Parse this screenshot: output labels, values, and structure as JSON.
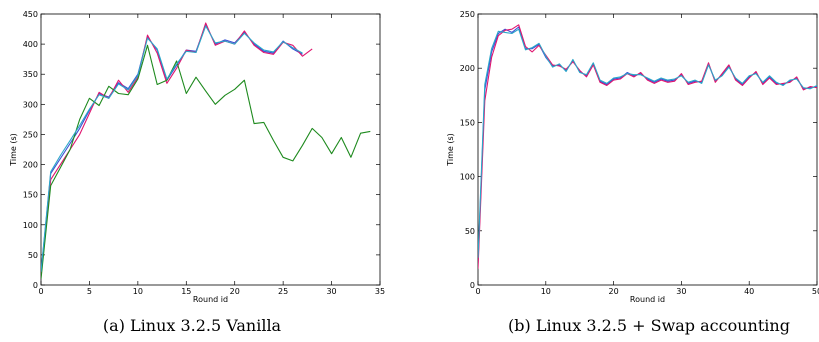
{
  "chart_data": [
    {
      "type": "line",
      "caption": "(a) Linux 3.2.5 Vanilla",
      "xlabel": "Round id",
      "ylabel": "Time (s)",
      "xlim": [
        0,
        35
      ],
      "ylim": [
        0,
        450
      ],
      "xticks": [
        0,
        5,
        10,
        15,
        20,
        25,
        30,
        35
      ],
      "yticks": [
        0,
        50,
        100,
        150,
        200,
        250,
        300,
        350,
        400,
        450
      ],
      "grid": false,
      "colors": [
        "#3a4fd6",
        "#e0156f",
        "#1e8a1e",
        "#2aa6c8"
      ],
      "series": [
        {
          "color": "#3a4fd6",
          "x": [
            0,
            1,
            2,
            3,
            4,
            5,
            6,
            7,
            8,
            9,
            10,
            11,
            12,
            13,
            14,
            15,
            16,
            17,
            18,
            19,
            20,
            21,
            22,
            23,
            24,
            25,
            26,
            27
          ],
          "values": [
            20,
            185,
            210,
            235,
            260,
            290,
            318,
            312,
            336,
            326,
            350,
            412,
            390,
            340,
            365,
            390,
            388,
            432,
            400,
            407,
            402,
            420,
            400,
            388,
            385,
            405,
            392,
            383
          ]
        },
        {
          "color": "#e0156f",
          "x": [
            0,
            1,
            2,
            3,
            4,
            5,
            6,
            7,
            8,
            9,
            10,
            11,
            12,
            13,
            14,
            15,
            16,
            17,
            18,
            19,
            20,
            21,
            22,
            23,
            24,
            25,
            26,
            27,
            28
          ],
          "values": [
            15,
            175,
            200,
            225,
            250,
            285,
            320,
            310,
            340,
            320,
            345,
            415,
            385,
            335,
            360,
            390,
            386,
            435,
            398,
            405,
            400,
            422,
            398,
            386,
            383,
            403,
            398,
            380,
            392
          ]
        },
        {
          "color": "#1e8a1e",
          "x": [
            0,
            1,
            2,
            3,
            4,
            5,
            6,
            7,
            8,
            9,
            10,
            11,
            12,
            13,
            14,
            15,
            16,
            17,
            18,
            19,
            20,
            21,
            22,
            23,
            24,
            25,
            26,
            27,
            28,
            29,
            30,
            31,
            32,
            33,
            34,
            35
          ],
          "values": [
            10,
            165,
            195,
            225,
            275,
            310,
            298,
            330,
            318,
            316,
            342,
            398,
            333,
            340,
            372,
            318,
            345,
            322,
            300,
            315,
            325,
            340,
            268,
            270,
            240,
            212,
            206,
            232,
            260,
            245,
            218,
            245,
            212,
            252,
            255,
            null
          ]
        },
        {
          "color": "#2aa6c8",
          "x": [
            0,
            1,
            2,
            3,
            4,
            5,
            6,
            7,
            8,
            9,
            10,
            11,
            12,
            13,
            14,
            15,
            16,
            17,
            18,
            19,
            20,
            21,
            22,
            23,
            24,
            25,
            26,
            27
          ],
          "values": [
            22,
            188,
            215,
            240,
            265,
            292,
            316,
            310,
            334,
            324,
            348,
            410,
            392,
            342,
            367,
            388,
            386,
            430,
            402,
            405,
            400,
            418,
            402,
            390,
            387,
            404,
            394,
            385
          ]
        }
      ]
    },
    {
      "type": "line",
      "caption": "(b) Linux 3.2.5 + Swap accounting",
      "xlabel": "Round id",
      "ylabel": "Time (s)",
      "xlim": [
        0,
        50
      ],
      "ylim": [
        0,
        250
      ],
      "xticks": [
        0,
        10,
        20,
        30,
        40,
        50
      ],
      "yticks": [
        0,
        50,
        100,
        150,
        200,
        250
      ],
      "grid": false,
      "colors": [
        "#3a4fd6",
        "#e0156f",
        "#2aa6c8"
      ],
      "series": [
        {
          "color": "#3a4fd6",
          "x": [
            0,
            1,
            2,
            3,
            4,
            5,
            6,
            7,
            8,
            9,
            10,
            11,
            12,
            13,
            14,
            15,
            16,
            17,
            18,
            19,
            20,
            21,
            22,
            23,
            24,
            25,
            26,
            27,
            28,
            29,
            30,
            31,
            32,
            33,
            34,
            35,
            36,
            37,
            38,
            39,
            40,
            41,
            42,
            43,
            44,
            45,
            46,
            47,
            48,
            49,
            50
          ],
          "values": [
            20,
            180,
            215,
            232,
            236,
            233,
            238,
            218,
            218,
            222,
            210,
            202,
            203,
            198,
            207,
            197,
            193,
            204,
            188,
            185,
            190,
            191,
            196,
            193,
            195,
            190,
            187,
            190,
            188,
            189,
            194,
            186,
            188,
            187,
            204,
            188,
            194,
            202,
            190,
            185,
            192,
            196,
            186,
            192,
            186,
            185,
            188,
            191,
            181,
            182,
            183
          ]
        },
        {
          "color": "#e0156f",
          "x": [
            0,
            1,
            2,
            3,
            4,
            5,
            6,
            7,
            8,
            9,
            10,
            11,
            12,
            13,
            14,
            15,
            16,
            17,
            18,
            19,
            20,
            21,
            22,
            23,
            24,
            25,
            26,
            27,
            28,
            29,
            30,
            31,
            32,
            33,
            34,
            35,
            36,
            37,
            38,
            39,
            40,
            41,
            42,
            43,
            44,
            45,
            46,
            47,
            48,
            49,
            50
          ],
          "values": [
            15,
            170,
            210,
            230,
            235,
            236,
            240,
            220,
            215,
            221,
            212,
            203,
            202,
            199,
            206,
            198,
            192,
            203,
            187,
            184,
            189,
            190,
            195,
            192,
            196,
            189,
            186,
            189,
            187,
            188,
            195,
            185,
            187,
            188,
            205,
            187,
            195,
            203,
            189,
            184,
            191,
            197,
            185,
            191,
            185,
            186,
            187,
            192,
            180,
            183,
            182
          ]
        },
        {
          "color": "#2aa6c8",
          "x": [
            0,
            1,
            2,
            3,
            4,
            5,
            6,
            7,
            8,
            9,
            10,
            11,
            12,
            13,
            14,
            15,
            16,
            17,
            18,
            19,
            20,
            21,
            22,
            23,
            24,
            25,
            26,
            27,
            28,
            29,
            30,
            31,
            32,
            33,
            34,
            35,
            36,
            37,
            38,
            39,
            40,
            41,
            42,
            43,
            44,
            45,
            46,
            47,
            48,
            49,
            50
          ],
          "values": [
            25,
            185,
            218,
            234,
            233,
            232,
            236,
            217,
            219,
            223,
            211,
            201,
            204,
            197,
            208,
            196,
            194,
            205,
            189,
            186,
            191,
            192,
            195,
            194,
            194,
            191,
            188,
            191,
            189,
            190,
            193,
            187,
            189,
            186,
            203,
            189,
            193,
            201,
            191,
            186,
            193,
            195,
            187,
            193,
            187,
            184,
            189,
            190,
            182,
            181,
            184
          ]
        }
      ]
    }
  ]
}
